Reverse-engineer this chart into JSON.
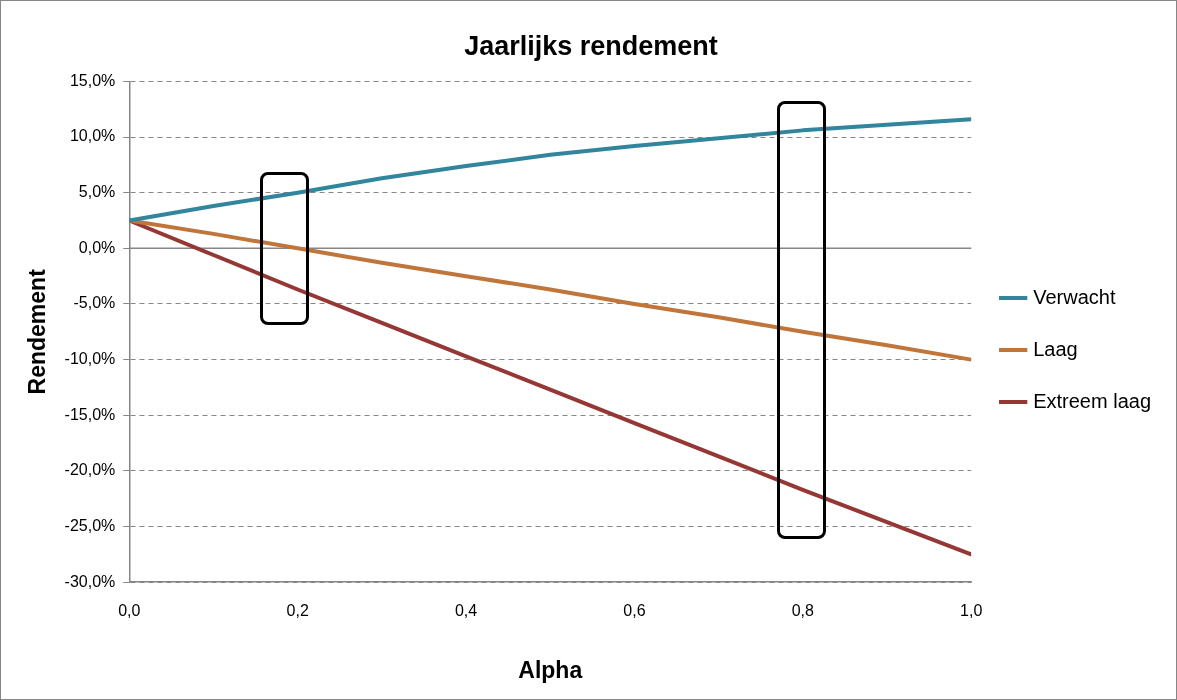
{
  "chart_data": {
    "type": "line",
    "title": "Jaarlijks rendement",
    "xlabel": "Alpha",
    "ylabel": "Rendement",
    "x": [
      0,
      0.1,
      0.2,
      0.3,
      0.4,
      0.5,
      0.6,
      0.7,
      0.8,
      0.9,
      1.0
    ],
    "series": [
      {
        "name": "Verwacht",
        "color": "#31859c",
        "values": [
          2.5,
          3.8,
          5.0,
          6.3,
          7.4,
          8.4,
          9.2,
          9.9,
          10.6,
          11.1,
          11.6
        ]
      },
      {
        "name": "Laag",
        "color": "#c0763a",
        "values": [
          2.5,
          1.3,
          0.0,
          -1.3,
          -2.5,
          -3.7,
          -5.0,
          -6.2,
          -7.5,
          -8.7,
          -10.0
        ]
      },
      {
        "name": "Extreem laag",
        "color": "#953735",
        "values": [
          2.5,
          -0.6,
          -3.7,
          -6.7,
          -9.7,
          -12.7,
          -15.7,
          -18.7,
          -21.7,
          -24.6,
          -27.5
        ]
      }
    ],
    "xlim": [
      0,
      1
    ],
    "xticks": [
      {
        "value": 0,
        "label": "0,0"
      },
      {
        "value": 0.2,
        "label": "0,2"
      },
      {
        "value": 0.4,
        "label": "0,4"
      },
      {
        "value": 0.6,
        "label": "0,6"
      },
      {
        "value": 0.8,
        "label": "0,8"
      },
      {
        "value": 1,
        "label": "1,0"
      }
    ],
    "ylim": [
      -30,
      15
    ],
    "yticks": [
      {
        "value": -30,
        "label": "-30,0%"
      },
      {
        "value": -25,
        "label": "-25,0%"
      },
      {
        "value": -20,
        "label": "-20,0%"
      },
      {
        "value": -15,
        "label": "-15,0%"
      },
      {
        "value": -10,
        "label": "-10,0%"
      },
      {
        "value": -5,
        "label": "-5,0%"
      },
      {
        "value": 0,
        "label": "0,0%"
      },
      {
        "value": 5,
        "label": "5,0%"
      },
      {
        "value": 10,
        "label": "10,0%"
      },
      {
        "value": 15,
        "label": "15,0%"
      }
    ],
    "ref_lines": [
      {
        "axis": "y",
        "value": 0,
        "color": "#868686",
        "line_style": "solid"
      }
    ],
    "grid": "y",
    "legend": "right",
    "marker": "none",
    "line_style": "solid"
  }
}
